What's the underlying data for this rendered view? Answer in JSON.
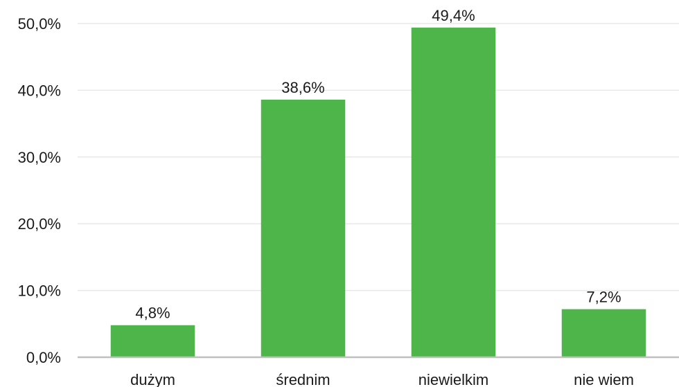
{
  "chart_data": {
    "type": "bar",
    "title": "",
    "xlabel": "",
    "ylabel": "",
    "categories": [
      "dużym",
      "średnim",
      "niewielkim",
      "nie wiem"
    ],
    "values": [
      4.8,
      38.6,
      49.4,
      7.2
    ],
    "value_labels": [
      "4,8%",
      "38,6%",
      "49,4%",
      "7,2%"
    ],
    "ylim": [
      0,
      50
    ],
    "yticks": [
      0,
      10,
      20,
      30,
      40,
      50
    ],
    "ytick_labels": [
      "0,0%",
      "10,0%",
      "20,0%",
      "30,0%",
      "40,0%",
      "50,0%"
    ],
    "grid": true,
    "legend": "none",
    "bar_color": "#4db54a",
    "grid_color": "#e8e8e8",
    "axis_color": "#bfbfbf"
  }
}
